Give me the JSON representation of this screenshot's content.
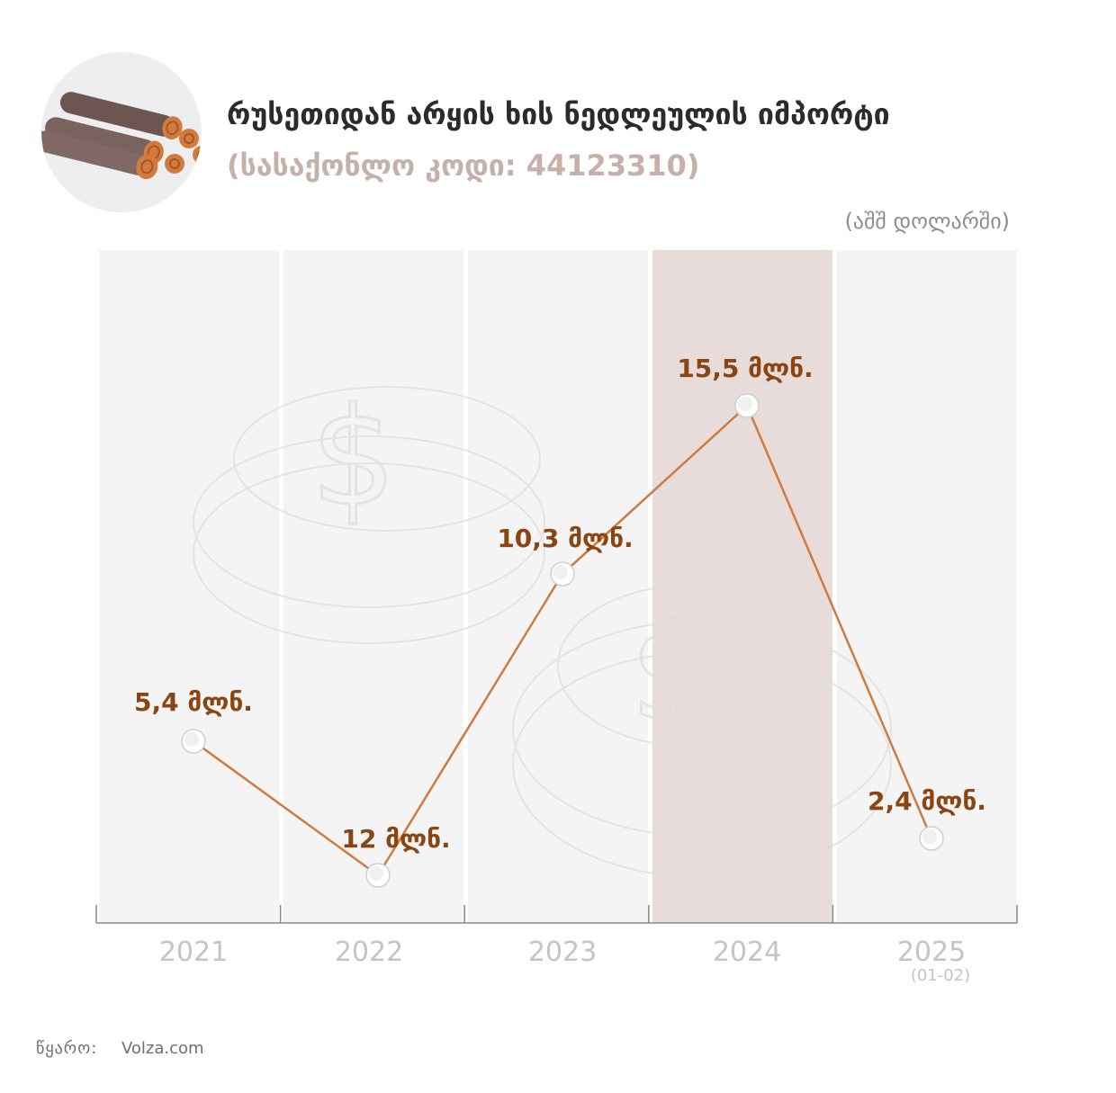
{
  "header": {
    "title": "რუსეთიდან არყის ხის ნედლეულის იმპორტი",
    "subtitle": "(სასაქონლო კოდი:  44123310)",
    "unit": "(აშშ დოლარში)",
    "logo_icon": "wood-logs-icon"
  },
  "colors": {
    "line": "#cf7b3f",
    "labels": "#8b4513",
    "highlight_column": "#e7dcd9",
    "column": "#f4f4f4",
    "axis_text": "#c4c4c4",
    "logs": "#7a625e",
    "log_ends": "#d17b3e"
  },
  "chart_data": {
    "type": "line",
    "categories": [
      "2021",
      "2022",
      "2023",
      "2024",
      "2025"
    ],
    "category_notes": [
      "",
      "",
      "",
      "",
      "(01-02)"
    ],
    "values": [
      5.4,
      12,
      10.3,
      15.5,
      2.4
    ],
    "data_labels": [
      "5,4 მლნ.",
      "12 მლნ.",
      "10,3 მლნ.",
      "15,5 მლნ.",
      "2,4 მლნ."
    ],
    "highlight_category": "2024",
    "grid": false,
    "background_icon": "dollar-coins-icon"
  },
  "footer": {
    "source_label": "წყარო:",
    "source_value": "Volza.com"
  }
}
